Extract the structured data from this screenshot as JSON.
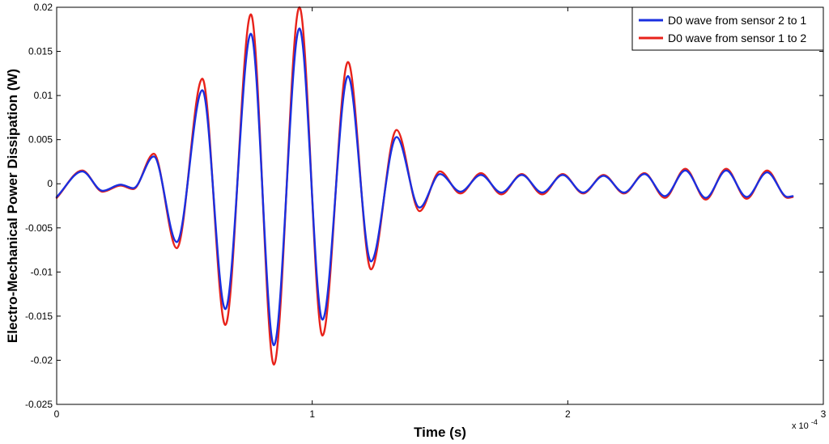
{
  "chart_data": {
    "type": "line",
    "title": "",
    "xlabel": "Time (s)",
    "ylabel": "Electro-Mechanical Power Dissipation (W)",
    "xlim": [
      0,
      3
    ],
    "ylim": [
      -0.025,
      0.02
    ],
    "x_multiplier": "x 10",
    "x_multiplier_exp": "-4",
    "xticks": [
      0,
      1,
      2,
      3
    ],
    "xtick_labels": [
      "0",
      "1",
      "2",
      "3"
    ],
    "yticks": [
      -0.025,
      -0.02,
      -0.015,
      -0.01,
      -0.005,
      0,
      0.005,
      0.01,
      0.015,
      0.02
    ],
    "ytick_labels": [
      "-0.025",
      "-0.02",
      "-0.015",
      "-0.01",
      "-0.005",
      "0",
      "0.005",
      "0.01",
      "0.015",
      "0.02"
    ],
    "grid": false,
    "legend_position": "top-right",
    "series": [
      {
        "name": "D0 wave from sensor 2 to 1",
        "color": "#1a2fe0",
        "x": [
          0,
          0.1,
          0.18,
          0.25,
          0.3,
          0.38,
          0.47,
          0.57,
          0.66,
          0.76,
          0.85,
          0.95,
          1.04,
          1.14,
          1.23,
          1.33,
          1.42,
          1.5,
          1.58,
          1.66,
          1.74,
          1.82,
          1.9,
          1.98,
          2.06,
          2.14,
          2.22,
          2.3,
          2.38,
          2.46,
          2.54,
          2.62,
          2.7,
          2.78,
          2.86,
          2.88
        ],
        "y": [
          -0.0015,
          0.0014,
          -0.0008,
          -0.0001,
          -0.0005,
          0.0031,
          -0.0066,
          0.0106,
          -0.0142,
          0.017,
          -0.0183,
          0.0176,
          -0.0154,
          0.0122,
          -0.0088,
          0.0053,
          -0.0027,
          0.0011,
          -0.0009,
          0.001,
          -0.001,
          0.001,
          -0.001,
          0.001,
          -0.001,
          0.0009,
          -0.001,
          0.0011,
          -0.0014,
          0.0015,
          -0.0016,
          0.0015,
          -0.0015,
          0.0013,
          -0.0015,
          -0.0014
        ]
      },
      {
        "name": "D0 wave from sensor 1 to 2",
        "color": "#e8221a",
        "x": [
          0,
          0.1,
          0.18,
          0.25,
          0.3,
          0.38,
          0.47,
          0.57,
          0.66,
          0.76,
          0.85,
          0.95,
          1.04,
          1.14,
          1.23,
          1.33,
          1.42,
          1.5,
          1.58,
          1.66,
          1.74,
          1.82,
          1.9,
          1.98,
          2.06,
          2.14,
          2.22,
          2.3,
          2.38,
          2.46,
          2.54,
          2.62,
          2.7,
          2.78,
          2.86,
          2.88
        ],
        "y": [
          -0.0016,
          0.0015,
          -0.0009,
          -0.0002,
          -0.0006,
          0.0034,
          -0.0073,
          0.0119,
          -0.016,
          0.0192,
          -0.0205,
          0.02,
          -0.0172,
          0.0138,
          -0.0097,
          0.0061,
          -0.0031,
          0.0014,
          -0.0011,
          0.0012,
          -0.0012,
          0.0011,
          -0.0012,
          0.0011,
          -0.0011,
          0.001,
          -0.0011,
          0.0012,
          -0.0016,
          0.0017,
          -0.0018,
          0.0017,
          -0.0017,
          0.0015,
          -0.0016,
          -0.0015
        ]
      }
    ]
  }
}
